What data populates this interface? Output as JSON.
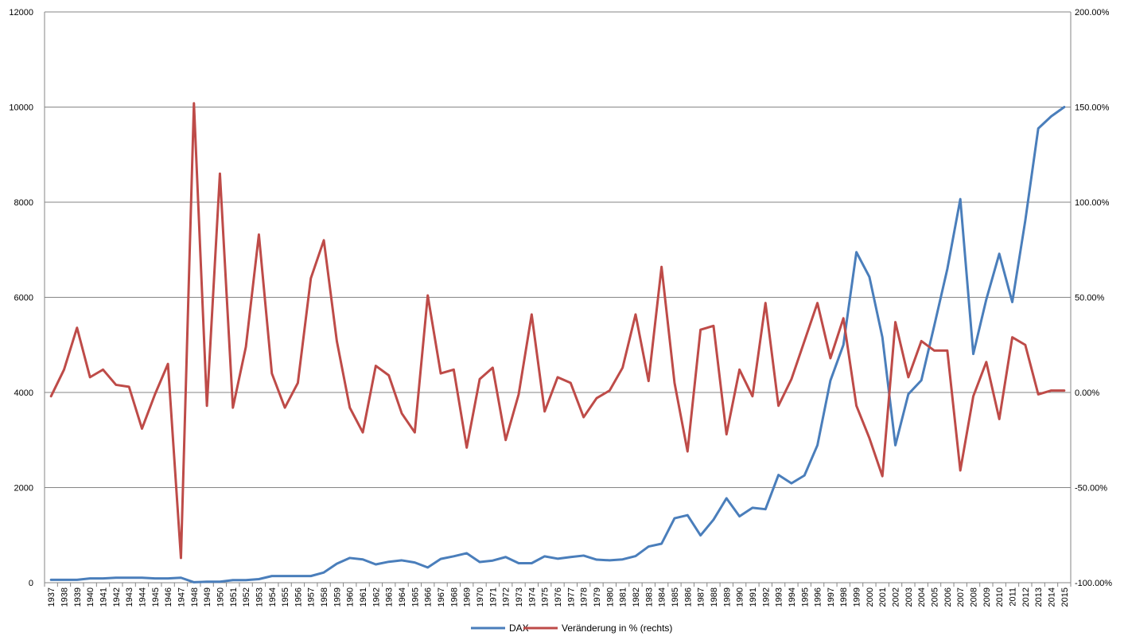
{
  "chart_data": {
    "type": "line",
    "title": "",
    "xlabel": "",
    "ylabel": "",
    "y2label": "",
    "ylim": [
      0,
      12000
    ],
    "y2lim": [
      -100,
      200
    ],
    "yticks": [
      0,
      2000,
      4000,
      6000,
      8000,
      10000,
      12000
    ],
    "y2ticks": [
      "-100.00%",
      "-50.00%",
      "0.00%",
      "50.00%",
      "100.00%",
      "150.00%",
      "200.00%"
    ],
    "grid": true,
    "legend_position": "bottom",
    "categories": [
      "1937",
      "1938",
      "1939",
      "1940",
      "1941",
      "1942",
      "1943",
      "1944",
      "1945",
      "1946",
      "1947",
      "1948",
      "1949",
      "1950",
      "1951",
      "1952",
      "1953",
      "1954",
      "1955",
      "1956",
      "1957",
      "1958",
      "1959",
      "1960",
      "1961",
      "1962",
      "1963",
      "1964",
      "1965",
      "1966",
      "1967",
      "1968",
      "1969",
      "1970",
      "1971",
      "1972",
      "1973",
      "1974",
      "1975",
      "1976",
      "1977",
      "1978",
      "1979",
      "1980",
      "1981",
      "1982",
      "1983",
      "1984",
      "1985",
      "1986",
      "1987",
      "1988",
      "1989",
      "1990",
      "1991",
      "1992",
      "1993",
      "1994",
      "1995",
      "1996",
      "1997",
      "1998",
      "1999",
      "2000",
      "2001",
      "2002",
      "2003",
      "2004",
      "2005",
      "2006",
      "2007",
      "2008",
      "2009",
      "2010",
      "2011",
      "2012",
      "2013",
      "2014",
      "2015"
    ],
    "series": [
      {
        "name": "DAX",
        "axis": "left",
        "color": "#4a7ebb",
        "values": [
          60,
          60,
          60,
          90,
          90,
          105,
          105,
          105,
          90,
          90,
          105,
          10,
          20,
          20,
          55,
          55,
          75,
          140,
          140,
          140,
          140,
          215,
          400,
          520,
          490,
          385,
          440,
          470,
          425,
          320,
          500,
          555,
          620,
          435,
          465,
          540,
          410,
          410,
          555,
          505,
          540,
          570,
          485,
          470,
          490,
          560,
          760,
          820,
          1355,
          1420,
          995,
          1325,
          1775,
          1395,
          1575,
          1545,
          2265,
          2090,
          2255,
          2890,
          4250,
          5000,
          6950,
          6430,
          5160,
          2890,
          3965,
          4255,
          5410,
          6595,
          8065,
          4810,
          5955,
          6915,
          5900,
          7610,
          9550,
          9805,
          10000
        ]
      },
      {
        "name": "Veränderung in % (rechts)",
        "axis": "right",
        "color": "#be4b48",
        "values": [
          -2,
          12,
          34,
          8,
          12,
          4,
          3,
          -19,
          -1,
          15,
          -87,
          152,
          -7,
          115,
          -8,
          24,
          83,
          10,
          -8,
          5,
          60,
          80,
          27,
          -8,
          -21,
          14,
          9,
          -11,
          -21,
          51,
          10,
          12,
          -29,
          7,
          13,
          -25,
          -1,
          41,
          -10,
          8,
          5,
          -13,
          -3,
          1,
          13,
          41,
          6,
          66,
          5,
          -31,
          33,
          35,
          -22,
          12,
          -2,
          47,
          -7,
          7,
          27,
          47,
          18,
          39,
          -7,
          -24,
          -44,
          37,
          8,
          27,
          22,
          22,
          -41,
          -2,
          16,
          -14,
          29,
          25,
          -1,
          1,
          1
        ]
      }
    ]
  }
}
